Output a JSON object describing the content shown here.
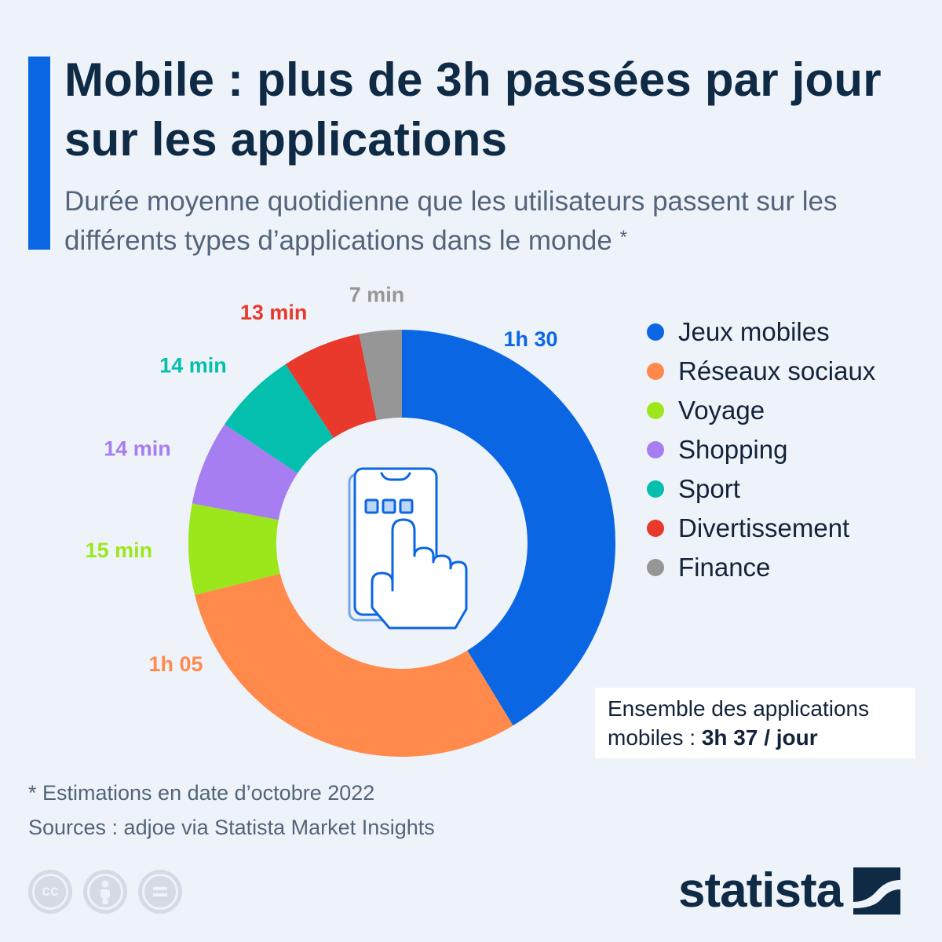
{
  "header": {
    "title": "Mobile : plus de 3h passées par jour sur les applications",
    "subtitle": "Durée moyenne quotidienne que les utilisateurs passent sur les différents types d’applications dans le monde",
    "subtitle_note_mark": "*"
  },
  "chart_data": {
    "type": "pie",
    "variant": "donut",
    "unit": "minutes",
    "categories": [
      "Jeux mobiles",
      "Réseaux sociaux",
      "Voyage",
      "Shopping",
      "Sport",
      "Divertissement",
      "Finance"
    ],
    "values": [
      90,
      65,
      15,
      14,
      14,
      13,
      7
    ],
    "value_labels": [
      "1h 30",
      "1h 05",
      "15 min",
      "14 min",
      "14 min",
      "13 min",
      "7 min"
    ],
    "colors": [
      "#0b66e4",
      "#ff8a4c",
      "#9ce71b",
      "#a67ef2",
      "#04bfae",
      "#e8392c",
      "#969696"
    ],
    "legend_position": "right",
    "center_icon": "smartphone-touch-icon"
  },
  "total_box": {
    "text": "Ensemble des applications mobiles :",
    "value": "3h 37 / jour"
  },
  "footer": {
    "note": "* Estimations en date d’octobre 2022",
    "source": "Sources : adjoe via Statista Market Insights",
    "license_icons": [
      "cc-icon",
      "attribution-icon",
      "no-derivatives-icon"
    ],
    "cc_text": "cc",
    "logo_text": "statista"
  }
}
